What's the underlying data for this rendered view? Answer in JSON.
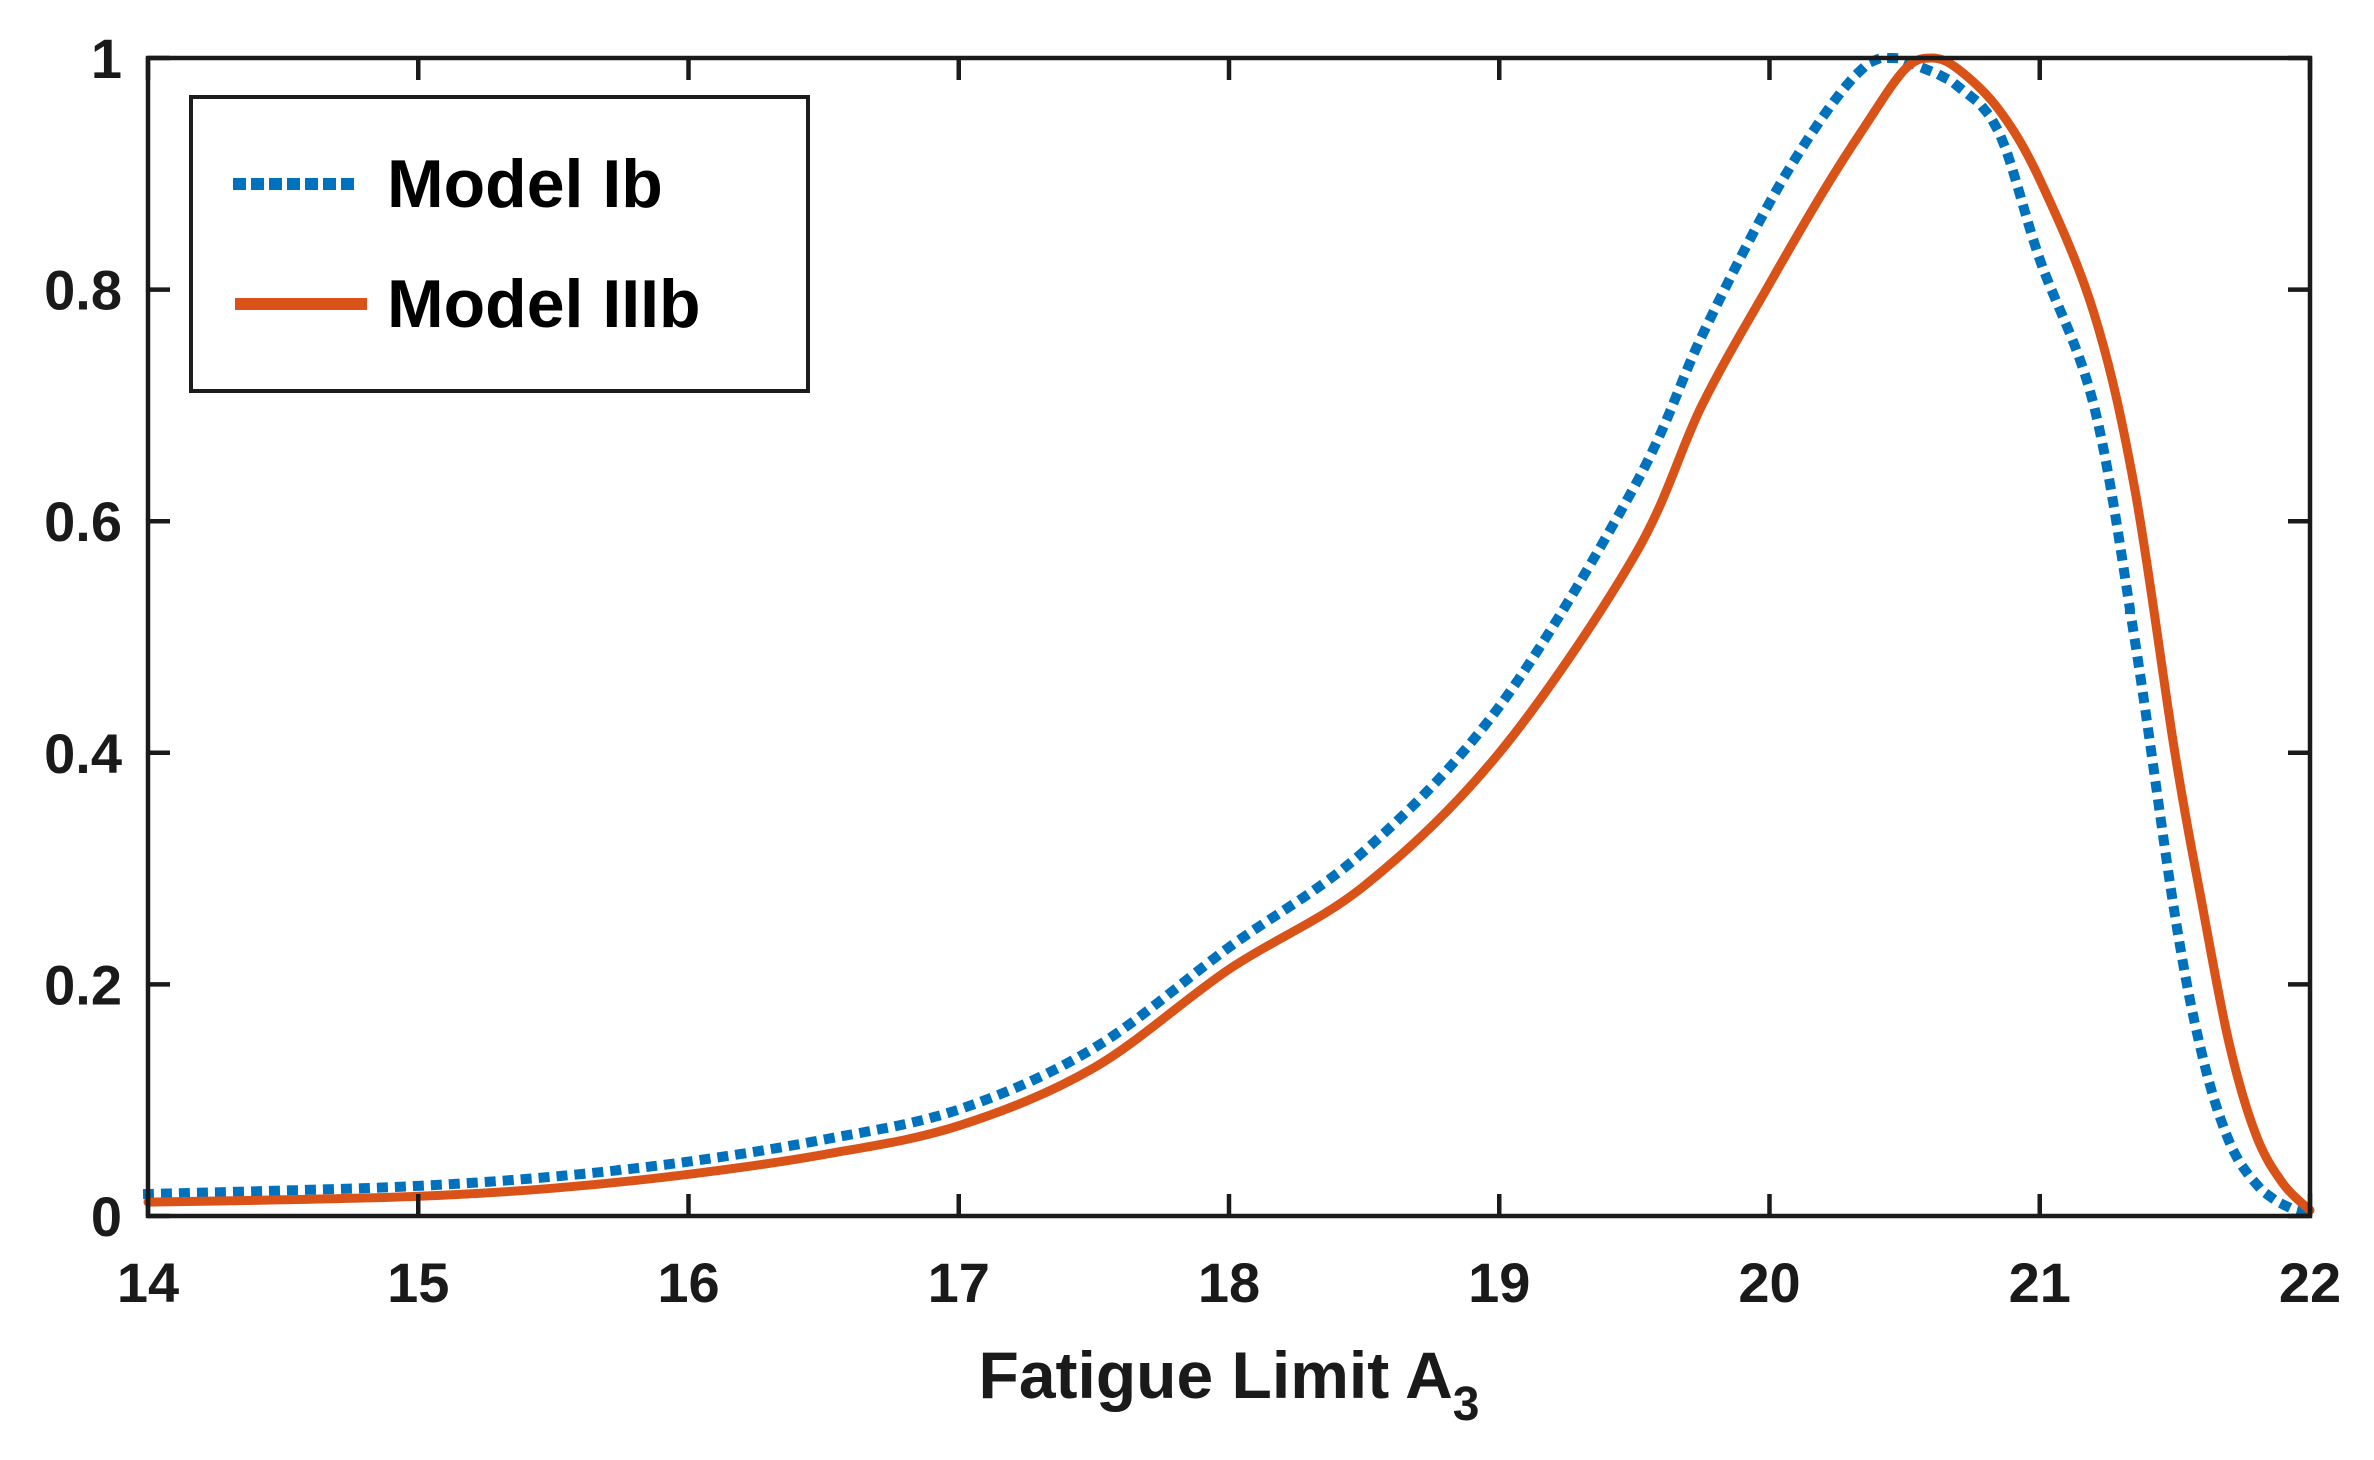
{
  "chart_data": {
    "type": "line",
    "title": "",
    "xlabel": "Fatigue Limit A",
    "xlabel_subscript": "3",
    "ylabel": "",
    "xlim": [
      14,
      22
    ],
    "ylim": [
      0,
      1
    ],
    "grid": false,
    "legend_position": "top-left",
    "axis_color": "#1a1a1a",
    "background_color": "#ffffff",
    "xticks": [
      14,
      15,
      16,
      17,
      18,
      19,
      20,
      21,
      22
    ],
    "xtick_labels": [
      "14",
      "15",
      "16",
      "17",
      "18",
      "19",
      "20",
      "21",
      "22"
    ],
    "yticks": [
      0,
      0.2,
      0.4,
      0.6,
      0.8,
      1
    ],
    "ytick_labels": [
      "0",
      "0.2",
      "0.4",
      "0.6",
      "0.8",
      "1"
    ],
    "series": [
      {
        "name": "Model Ib",
        "color": "#0072BD",
        "style": "dotted",
        "line_width": 10,
        "peak_x": 20.45,
        "points": [
          [
            14,
            0.019
          ],
          [
            14.5,
            0.022
          ],
          [
            15,
            0.026
          ],
          [
            15.5,
            0.034
          ],
          [
            16,
            0.047
          ],
          [
            16.5,
            0.066
          ],
          [
            17,
            0.092
          ],
          [
            17.5,
            0.145
          ],
          [
            18,
            0.232
          ],
          [
            18.5,
            0.315
          ],
          [
            19,
            0.44
          ],
          [
            19.5,
            0.63
          ],
          [
            19.75,
            0.76
          ],
          [
            20,
            0.875
          ],
          [
            20.2,
            0.95
          ],
          [
            20.35,
            0.992
          ],
          [
            20.45,
            1.0
          ],
          [
            20.55,
            0.993
          ],
          [
            20.7,
            0.975
          ],
          [
            20.85,
            0.935
          ],
          [
            21,
            0.826
          ],
          [
            21.2,
            0.7
          ],
          [
            21.35,
            0.5
          ],
          [
            21.5,
            0.26
          ],
          [
            21.6,
            0.14
          ],
          [
            21.7,
            0.065
          ],
          [
            21.8,
            0.028
          ],
          [
            21.9,
            0.01
          ],
          [
            22,
            0.002
          ]
        ]
      },
      {
        "name": "Model IIIb",
        "color": "#D95319",
        "style": "solid",
        "line_width": 9,
        "peak_x": 20.6,
        "points": [
          [
            14,
            0.012
          ],
          [
            14.5,
            0.014
          ],
          [
            15,
            0.017
          ],
          [
            15.5,
            0.024
          ],
          [
            16,
            0.036
          ],
          [
            16.5,
            0.053
          ],
          [
            17,
            0.078
          ],
          [
            17.5,
            0.128
          ],
          [
            18,
            0.213
          ],
          [
            18.5,
            0.285
          ],
          [
            19,
            0.4
          ],
          [
            19.5,
            0.57
          ],
          [
            19.75,
            0.7
          ],
          [
            20,
            0.805
          ],
          [
            20.2,
            0.885
          ],
          [
            20.35,
            0.94
          ],
          [
            20.5,
            0.99
          ],
          [
            20.6,
            1.0
          ],
          [
            20.7,
            0.99
          ],
          [
            20.85,
            0.955
          ],
          [
            21,
            0.895
          ],
          [
            21.2,
            0.78
          ],
          [
            21.35,
            0.63
          ],
          [
            21.5,
            0.4
          ],
          [
            21.6,
            0.27
          ],
          [
            21.7,
            0.15
          ],
          [
            21.8,
            0.07
          ],
          [
            21.9,
            0.028
          ],
          [
            22,
            0.005
          ]
        ]
      }
    ]
  },
  "legend": {
    "items": [
      {
        "label": "Model Ib"
      },
      {
        "label": "Model IIIb"
      }
    ]
  }
}
